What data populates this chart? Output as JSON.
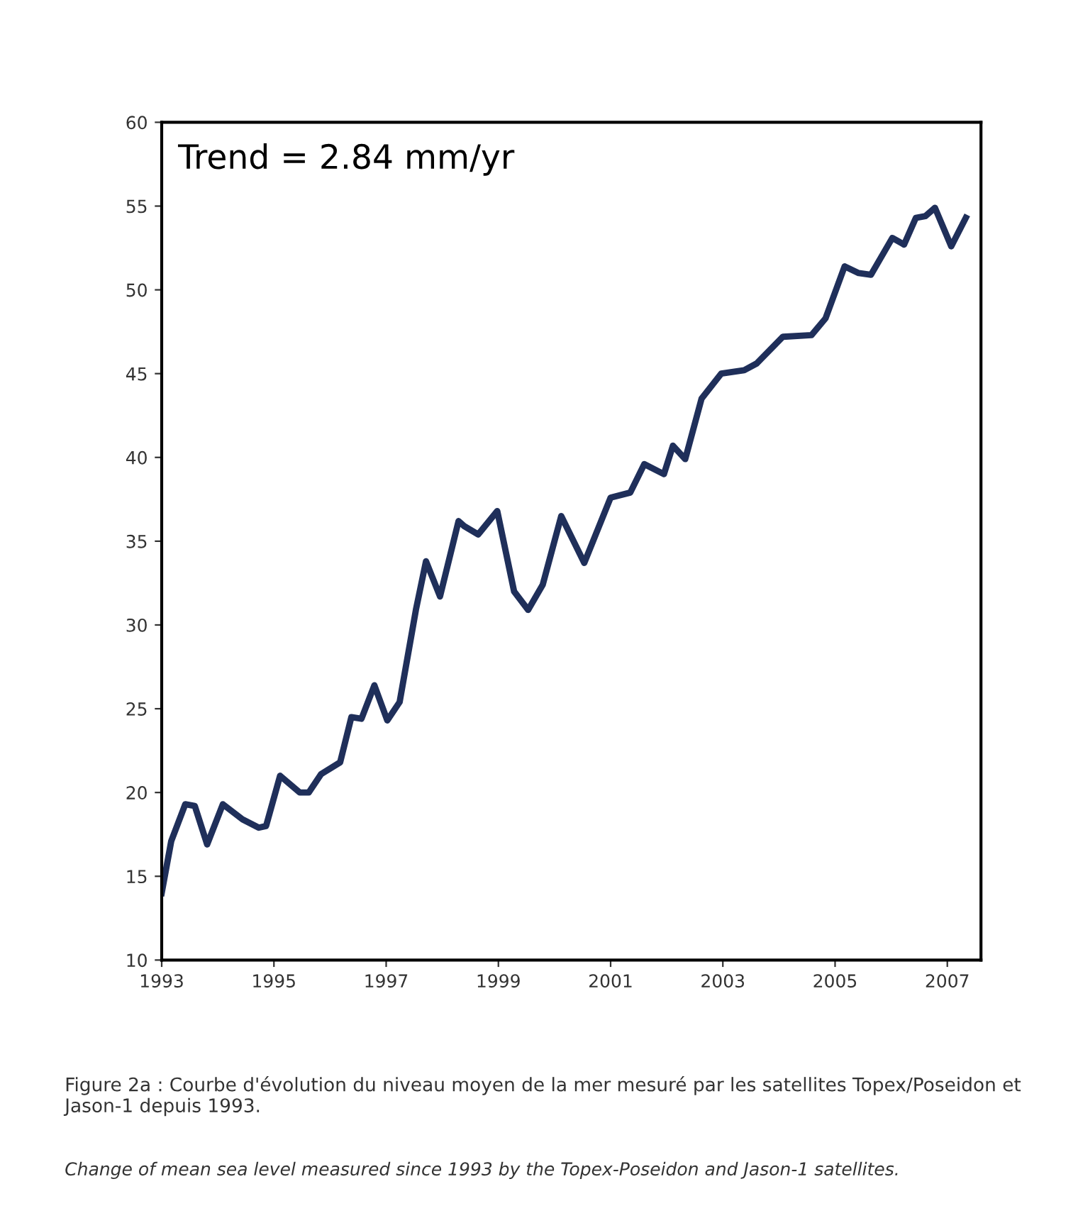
{
  "chart_data": {
    "type": "line",
    "annotations": [
      "Trend = 2.84 mm/yr",
      "Figure 2a : Courbe d'évolution du niveau moyen de la mer mesuré par les satellites Topex/Poseidon et Jason-1 depuis 1993.",
      "Change of mean sea level measured since 1993 by the Topex-Poseidon and Jason-1 satellites."
    ],
    "x": [
      1993.0,
      1993.17,
      1993.42,
      1993.59,
      1993.81,
      1994.09,
      1994.44,
      1994.73,
      1994.86,
      1995.11,
      1995.46,
      1995.62,
      1995.84,
      1996.18,
      1996.38,
      1996.56,
      1996.79,
      1997.02,
      1997.24,
      1997.53,
      1997.71,
      1997.96,
      1998.29,
      1998.39,
      1998.64,
      1998.98,
      1999.28,
      1999.53,
      1999.79,
      2000.12,
      2000.53,
      2001.0,
      2001.35,
      2001.6,
      2001.95,
      2002.11,
      2002.33,
      2002.62,
      2002.97,
      2003.38,
      2003.6,
      2004.07,
      2004.58,
      2004.83,
      2005.17,
      2005.42,
      2005.64,
      2006.02,
      2006.23,
      2006.44,
      2006.61,
      2006.78,
      2007.07,
      2007.33
    ],
    "series": [
      {
        "color": "#1f2f5a",
        "values": [
          14.0,
          17.1,
          19.3,
          19.2,
          16.9,
          19.3,
          18.4,
          17.9,
          18.0,
          21.0,
          20.0,
          20.0,
          21.1,
          21.8,
          24.5,
          24.4,
          26.4,
          24.3,
          25.4,
          30.9,
          33.8,
          31.7,
          36.2,
          35.9,
          35.4,
          36.8,
          32.0,
          30.9,
          32.4,
          36.5,
          33.7,
          37.6,
          37.9,
          39.6,
          39.0,
          40.7,
          39.9,
          43.5,
          45.0,
          45.2,
          45.6,
          47.2,
          47.3,
          48.3,
          51.4,
          51.0,
          50.9,
          53.1,
          52.7,
          54.3,
          54.4,
          54.9,
          52.6,
          54.3
        ]
      }
    ],
    "xlim": [
      1993,
      2007.6
    ],
    "xticks": [
      1993,
      1995,
      1997,
      1999,
      2001,
      2003,
      2005,
      2007
    ],
    "ylim": [
      10,
      60
    ],
    "yticks": [
      10,
      15,
      20,
      25,
      30,
      35,
      40,
      45,
      50,
      55,
      60
    ],
    "grid": false,
    "legend": false,
    "marker": "none",
    "line_style": "solid"
  }
}
